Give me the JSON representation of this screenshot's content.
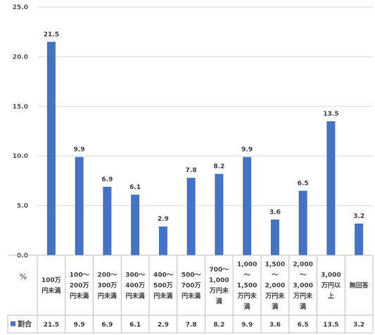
{
  "chart_data": {
    "type": "bar",
    "ylabel": "%",
    "ylim": [
      0,
      25
    ],
    "yticks": [
      "0.0",
      "5.0",
      "10.0",
      "15.0",
      "20.0",
      "25.0"
    ],
    "grid": true,
    "legend": "data-table-left",
    "categories": [
      [
        "100万",
        "円未満"
      ],
      [
        "100～",
        "200万",
        "円未満"
      ],
      [
        "200～",
        "300万",
        "円未満"
      ],
      [
        "300～",
        "400万",
        "円未満"
      ],
      [
        "400～",
        "500万",
        "円未満"
      ],
      [
        "500～",
        "700万",
        "円未満"
      ],
      [
        "700～",
        "1,000",
        "万円未",
        "満"
      ],
      [
        "1,000",
        "～",
        "1,500",
        "万円未",
        "満"
      ],
      [
        "1,500",
        "～",
        "2,000",
        "万円未",
        "満"
      ],
      [
        "2,000",
        "～",
        "3,000",
        "万円未",
        "満"
      ],
      [
        "3,000",
        "万円以",
        "上"
      ],
      [
        "無回答"
      ]
    ],
    "series": [
      {
        "name": "割合",
        "color": "#4472c4",
        "values": [
          21.5,
          9.9,
          6.9,
          6.1,
          2.9,
          7.8,
          8.2,
          9.9,
          3.6,
          6.5,
          13.5,
          3.2
        ],
        "labels": [
          "21.5",
          "9.9",
          "6.9",
          "6.1",
          "2.9",
          "7.8",
          "8.2",
          "9.9",
          "3.6",
          "6.5",
          "13.5",
          "3.2"
        ]
      }
    ]
  }
}
